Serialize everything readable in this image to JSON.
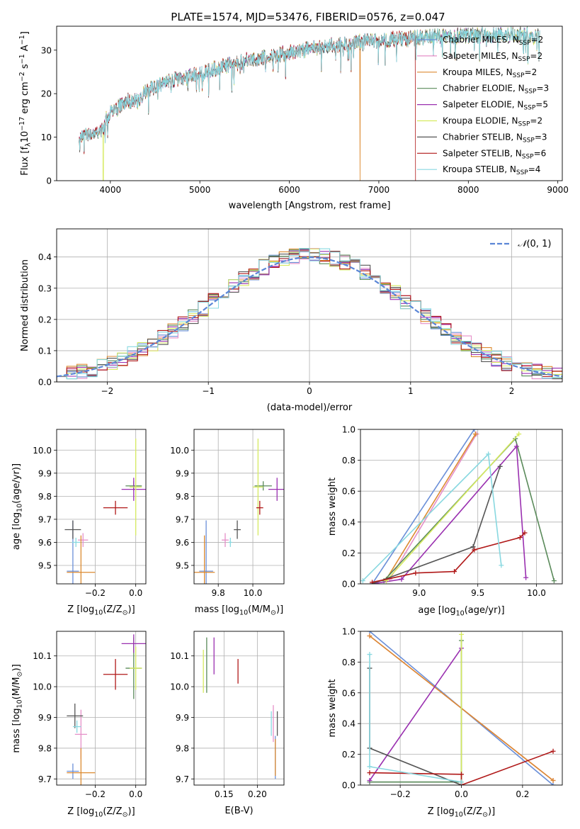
{
  "title": "PLATE=1574, MJD=53476, FIBERID=0576, z=0.047",
  "colors": {
    "Chabrier MILES": "#6a8fd8",
    "Salpeter MILES": "#e58fc8",
    "Kroupa MILES": "#dc8a30",
    "Chabrier ELODIE": "#5a8a5a",
    "Salpeter ELODIE": "#9a30b0",
    "Kroupa ELODIE": "#d6ea60",
    "Chabrier STELIB": "#555555",
    "Salpeter STELIB": "#b01818",
    "Kroupa STELIB": "#88d8e0"
  },
  "models": [
    {
      "imf": "Chabrier",
      "lib": "MILES",
      "nssp": "2"
    },
    {
      "imf": "Salpeter",
      "lib": "MILES",
      "nssp": "2"
    },
    {
      "imf": "Kroupa",
      "lib": "MILES",
      "nssp": "2"
    },
    {
      "imf": "Chabrier",
      "lib": "ELODIE",
      "nssp": "3"
    },
    {
      "imf": "Salpeter",
      "lib": "ELODIE",
      "nssp": "5"
    },
    {
      "imf": "Kroupa",
      "lib": "ELODIE",
      "nssp": "2"
    },
    {
      "imf": "Chabrier",
      "lib": "STELIB",
      "nssp": "3"
    },
    {
      "imf": "Salpeter",
      "lib": "STELIB",
      "nssp": "6"
    },
    {
      "imf": "Kroupa",
      "lib": "STELIB",
      "nssp": "4"
    }
  ],
  "chart_data": [
    {
      "id": "spectrum",
      "type": "line",
      "xlabel": "wavelength [Angstrom, rest frame]",
      "ylabel_main": "Flux [f",
      "ylabel_sub": "λ",
      "ylabel_rest": "10",
      "ylabel_exp": "−17",
      "ylabel_units": " erg cm",
      "ylabel_exp2": "−2",
      "ylabel_s": " s",
      "ylabel_exp3": "−1",
      "ylabel_A": " A",
      "ylabel_exp4": "−1",
      "ylabel_end": "]",
      "xlim": [
        3400,
        9050
      ],
      "ylim": [
        0,
        35.5
      ],
      "xticks": [
        4000,
        5000,
        6000,
        7000,
        8000,
        9000
      ],
      "yticks": [
        0,
        10,
        20,
        30
      ],
      "continuum": {
        "x": [
          3650,
          3700,
          3800,
          3900,
          3950,
          4000,
          4100,
          4200,
          4300,
          4400,
          4500,
          4700,
          5000,
          5200,
          5500,
          5800,
          6000,
          6300,
          6600,
          7000,
          7400,
          7800,
          8200,
          8600,
          8800
        ],
        "y": [
          9.5,
          10.5,
          10.8,
          11.5,
          14,
          15.5,
          17,
          18.5,
          18,
          20.5,
          21.5,
          23,
          24.5,
          26,
          27.5,
          28.5,
          29.5,
          30.5,
          31.5,
          32.3,
          32.8,
          33.2,
          33.5,
          33.5,
          33.3
        ]
      },
      "dropouts": [
        {
          "model": "Kroupa ELODIE",
          "x": 3920
        },
        {
          "model": "Kroupa MILES",
          "x": 6790
        },
        {
          "model": "Salpeter STELIB",
          "x": 7410
        }
      ],
      "legend_location": "right"
    },
    {
      "id": "residuals",
      "type": "histogram",
      "xlabel": "(data-model)/error",
      "ylabel": "Normed distribution",
      "xlim": [
        -2.5,
        2.5
      ],
      "ylim": [
        0,
        0.49
      ],
      "xticks": [
        -2,
        -1,
        0,
        1,
        2
      ],
      "yticks": [
        0.0,
        0.1,
        0.2,
        0.3,
        0.4
      ],
      "reference_label": "N(0, 1)",
      "reference_label_script": "𝒩",
      "reference_label_args": "(0, 1)",
      "bin_width": 0.1
    },
    {
      "id": "age-vs-Z",
      "type": "scatter",
      "xlabel": "Z [log",
      "xlabel_sub": "10",
      "xlabel_rest": "(Z/Z",
      "xlabel_sun": "⊙",
      "xlabel_end": ")]",
      "ylabel": "age  [log",
      "ylabel_sub": "10",
      "ylabel_rest": "(age/yr)]",
      "xlim": [
        -0.39,
        0.05
      ],
      "ylim": [
        9.42,
        10.09
      ],
      "xticks": [
        -0.2,
        0.0
      ],
      "yticks": [
        9.5,
        9.6,
        9.7,
        9.8,
        9.9,
        10.0
      ],
      "points": [
        {
          "model": "Chabrier MILES",
          "x": -0.31,
          "y": 9.475,
          "xerr": 0.03,
          "yerr": 0.22
        },
        {
          "model": "Salpeter MILES",
          "x": -0.26,
          "y": 9.61,
          "xerr": 0.025,
          "yerr": 0.03
        },
        {
          "model": "Kroupa MILES",
          "x": -0.27,
          "y": 9.47,
          "xerr": 0.07,
          "yerr": 0.16
        },
        {
          "model": "Chabrier ELODIE",
          "x": -0.01,
          "y": 9.845,
          "xerr": 0.04,
          "yerr": 0.02
        },
        {
          "model": "Salpeter ELODIE",
          "x": -0.01,
          "y": 9.83,
          "xerr": 0.06,
          "yerr": 0.05
        },
        {
          "model": "Kroupa ELODIE",
          "x": 0.0,
          "y": 9.84,
          "xerr": 0.03,
          "yerr": 0.21
        },
        {
          "model": "Chabrier STELIB",
          "x": -0.31,
          "y": 9.655,
          "xerr": 0.04,
          "yerr": 0.04
        },
        {
          "model": "Salpeter STELIB",
          "x": -0.1,
          "y": 9.75,
          "xerr": 0.06,
          "yerr": 0.03
        },
        {
          "model": "Kroupa STELIB",
          "x": -0.295,
          "y": 9.6,
          "xerr": 0.02,
          "yerr": 0.02
        }
      ]
    },
    {
      "id": "age-vs-mass",
      "type": "scatter",
      "xlabel": "mass [log",
      "xlabel_sub": "10",
      "xlabel_rest": "(M/M",
      "xlabel_sun": "⊙",
      "xlabel_end": ")]",
      "xlim": [
        9.66,
        10.18
      ],
      "ylim": [
        9.42,
        10.09
      ],
      "xticks": [
        9.8,
        10.0
      ],
      "yticks": [
        9.5,
        9.6,
        9.7,
        9.8,
        9.9,
        10.0
      ],
      "points": [
        {
          "model": "Chabrier MILES",
          "x": 9.73,
          "y": 9.475,
          "xerr": 0.04,
          "yerr": 0.22
        },
        {
          "model": "Salpeter MILES",
          "x": 9.84,
          "y": 9.61,
          "xerr": 0.02,
          "yerr": 0.03
        },
        {
          "model": "Kroupa MILES",
          "x": 9.72,
          "y": 9.47,
          "xerr": 0.06,
          "yerr": 0.16
        },
        {
          "model": "Chabrier ELODIE",
          "x": 10.06,
          "y": 9.845,
          "xerr": 0.05,
          "yerr": 0.02
        },
        {
          "model": "Salpeter ELODIE",
          "x": 10.14,
          "y": 9.83,
          "xerr": 0.05,
          "yerr": 0.05
        },
        {
          "model": "Kroupa ELODIE",
          "x": 10.03,
          "y": 9.84,
          "xerr": 0.03,
          "yerr": 0.21
        },
        {
          "model": "Chabrier STELIB",
          "x": 9.91,
          "y": 9.655,
          "xerr": 0.02,
          "yerr": 0.04
        },
        {
          "model": "Salpeter STELIB",
          "x": 10.04,
          "y": 9.75,
          "xerr": 0.02,
          "yerr": 0.03
        },
        {
          "model": "Kroupa STELIB",
          "x": 9.87,
          "y": 9.6,
          "xerr": 0.01,
          "yerr": 0.02
        }
      ]
    },
    {
      "id": "weight-vs-age",
      "type": "line",
      "xlabel": "age  [log",
      "xlabel_sub": "10",
      "xlabel_rest": "(age/yr)]",
      "ylabel": "mass weight",
      "xlim": [
        8.5,
        10.22
      ],
      "ylim": [
        0,
        1
      ],
      "xticks": [
        9.0,
        9.5,
        10.0
      ],
      "yticks": [
        0.0,
        0.2,
        0.4,
        0.6,
        0.8,
        1.0
      ],
      "series": [
        {
          "model": "Chabrier MILES",
          "x": [
            8.6,
            9.47
          ],
          "y": [
            0.0,
            1.0
          ]
        },
        {
          "model": "Salpeter MILES",
          "x": [
            8.75,
            9.49
          ],
          "y": [
            0.03,
            0.97
          ]
        },
        {
          "model": "Kroupa MILES",
          "x": [
            8.72,
            9.48
          ],
          "y": [
            0.03,
            0.97
          ]
        },
        {
          "model": "Chabrier ELODIE",
          "x": [
            8.7,
            9.82,
            10.15
          ],
          "y": [
            0.02,
            0.94,
            0.02
          ]
        },
        {
          "model": "Salpeter ELODIE",
          "x": [
            8.6,
            8.85,
            9.83,
            9.91
          ],
          "y": [
            0.0,
            0.03,
            0.89,
            0.04
          ]
        },
        {
          "model": "Kroupa ELODIE",
          "x": [
            8.72,
            9.85
          ],
          "y": [
            0.02,
            0.97
          ]
        },
        {
          "model": "Chabrier STELIB",
          "x": [
            8.6,
            9.46,
            9.69
          ],
          "y": [
            0.0,
            0.24,
            0.76
          ]
        },
        {
          "model": "Salpeter STELIB",
          "x": [
            8.6,
            8.97,
            9.3,
            9.47,
            9.86,
            9.9
          ],
          "y": [
            0.01,
            0.07,
            0.08,
            0.22,
            0.3,
            0.33
          ]
        },
        {
          "model": "Kroupa STELIB",
          "x": [
            8.52,
            9.59,
            9.7
          ],
          "y": [
            0.02,
            0.84,
            0.12
          ]
        }
      ]
    },
    {
      "id": "mass-vs-Z",
      "type": "scatter",
      "xlabel": "Z [log",
      "xlabel_sub": "10",
      "xlabel_rest": "(Z/Z",
      "xlabel_sun": "⊙",
      "xlabel_end": ")]",
      "ylabel": "mass [log",
      "ylabel_sub": "10",
      "ylabel_rest": "(M/M",
      "ylabel_sun": "⊙",
      "ylabel_end": ")]",
      "xlim": [
        -0.39,
        0.05
      ],
      "ylim": [
        9.68,
        10.18
      ],
      "xticks": [
        -0.2,
        0.0
      ],
      "yticks": [
        9.7,
        9.8,
        9.9,
        10.0,
        10.1
      ],
      "points": [
        {
          "model": "Chabrier MILES",
          "x": -0.31,
          "y": 9.725,
          "xerr": 0.03,
          "yerr": 0.025
        },
        {
          "model": "Salpeter MILES",
          "x": -0.27,
          "y": 9.845,
          "xerr": 0.03,
          "yerr": 0.08
        },
        {
          "model": "Kroupa MILES",
          "x": -0.27,
          "y": 9.72,
          "xerr": 0.07,
          "yerr": 0.08
        },
        {
          "model": "Chabrier ELODIE",
          "x": -0.01,
          "y": 10.06,
          "xerr": 0.04,
          "yerr": 0.1
        },
        {
          "model": "Salpeter ELODIE",
          "x": -0.01,
          "y": 10.14,
          "xerr": 0.06,
          "yerr": 0.03
        },
        {
          "model": "Kroupa ELODIE",
          "x": 0.0,
          "y": 10.06,
          "xerr": 0.03,
          "yerr": 0.07
        },
        {
          "model": "Chabrier STELIB",
          "x": -0.3,
          "y": 9.905,
          "xerr": 0.04,
          "yerr": 0.04
        },
        {
          "model": "Salpeter STELIB",
          "x": -0.1,
          "y": 10.04,
          "xerr": 0.06,
          "yerr": 0.05
        },
        {
          "model": "Kroupa STELIB",
          "x": -0.29,
          "y": 9.87,
          "xerr": 0.02,
          "yerr": 0.02
        }
      ]
    },
    {
      "id": "mass-vs-ebv",
      "type": "scatter",
      "xlabel": "E(B-V)",
      "xlim": [
        0.105,
        0.24
      ],
      "ylim": [
        9.68,
        10.18
      ],
      "xticks": [
        0.15,
        0.2
      ],
      "yticks": [
        9.7,
        9.8,
        9.9,
        10.0,
        10.1
      ],
      "points": [
        {
          "model": "Chabrier MILES",
          "x": 0.227,
          "y": 9.77,
          "yerr": 0.07
        },
        {
          "model": "Salpeter MILES",
          "x": 0.224,
          "y": 9.88,
          "yerr": 0.06
        },
        {
          "model": "Kroupa MILES",
          "x": 0.227,
          "y": 9.77,
          "yerr": 0.06
        },
        {
          "model": "Chabrier ELODIE",
          "x": 0.124,
          "y": 10.07,
          "yerr": 0.09
        },
        {
          "model": "Salpeter ELODIE",
          "x": 0.135,
          "y": 10.1,
          "yerr": 0.06
        },
        {
          "model": "Kroupa ELODIE",
          "x": 0.119,
          "y": 10.05,
          "yerr": 0.07
        },
        {
          "model": "Chabrier STELIB",
          "x": 0.23,
          "y": 9.88,
          "yerr": 0.04
        },
        {
          "model": "Salpeter STELIB",
          "x": 0.171,
          "y": 10.05,
          "yerr": 0.04
        },
        {
          "model": "Kroupa STELIB",
          "x": 0.221,
          "y": 9.88,
          "yerr": 0.04
        }
      ]
    },
    {
      "id": "weight-vs-Z",
      "type": "line",
      "xlabel": "Z [log",
      "xlabel_sub": "10",
      "xlabel_rest": "(Z/Z",
      "xlabel_sun": "⊙",
      "xlabel_end": ")]",
      "ylabel": "mass weight",
      "xlim": [
        -0.33,
        0.33
      ],
      "ylim": [
        0,
        1
      ],
      "xticks": [
        -0.2,
        0.0,
        0.2
      ],
      "yticks": [
        0.0,
        0.2,
        0.4,
        0.6,
        0.8,
        1.0
      ],
      "series": [
        {
          "model": "Chabrier MILES",
          "x": [
            -0.3,
            0.3
          ],
          "y": [
            1.0,
            0.0
          ]
        },
        {
          "model": "Salpeter MILES",
          "x": [
            -0.3,
            0.3
          ],
          "y": [
            0.97,
            0.03
          ]
        },
        {
          "model": "Kroupa MILES",
          "x": [
            -0.3,
            0.3
          ],
          "y": [
            0.97,
            0.03
          ]
        },
        {
          "model": "Chabrier ELODIE",
          "x": [
            -0.3,
            0.0,
            0.0
          ],
          "y": [
            0.02,
            0.02,
            0.94
          ]
        },
        {
          "model": "Salpeter ELODIE",
          "x": [
            -0.3,
            0.0
          ],
          "y": [
            0.03,
            0.89
          ]
        },
        {
          "model": "Kroupa ELODIE",
          "x": [
            0.0,
            0.0
          ],
          "y": [
            0.02,
            0.98
          ]
        },
        {
          "model": "Chabrier STELIB",
          "x": [
            -0.3,
            -0.3,
            0.0,
            0.0
          ],
          "y": [
            0.76,
            0.24,
            0.0,
            0.0
          ]
        },
        {
          "model": "Salpeter STELIB",
          "x": [
            -0.3,
            0.0,
            0.0,
            0.3
          ],
          "y": [
            0.08,
            0.07,
            0.0,
            0.22
          ]
        },
        {
          "model": "Kroupa STELIB",
          "x": [
            -0.3,
            -0.3,
            0.0
          ],
          "y": [
            0.85,
            0.12,
            0.02
          ]
        }
      ]
    }
  ]
}
